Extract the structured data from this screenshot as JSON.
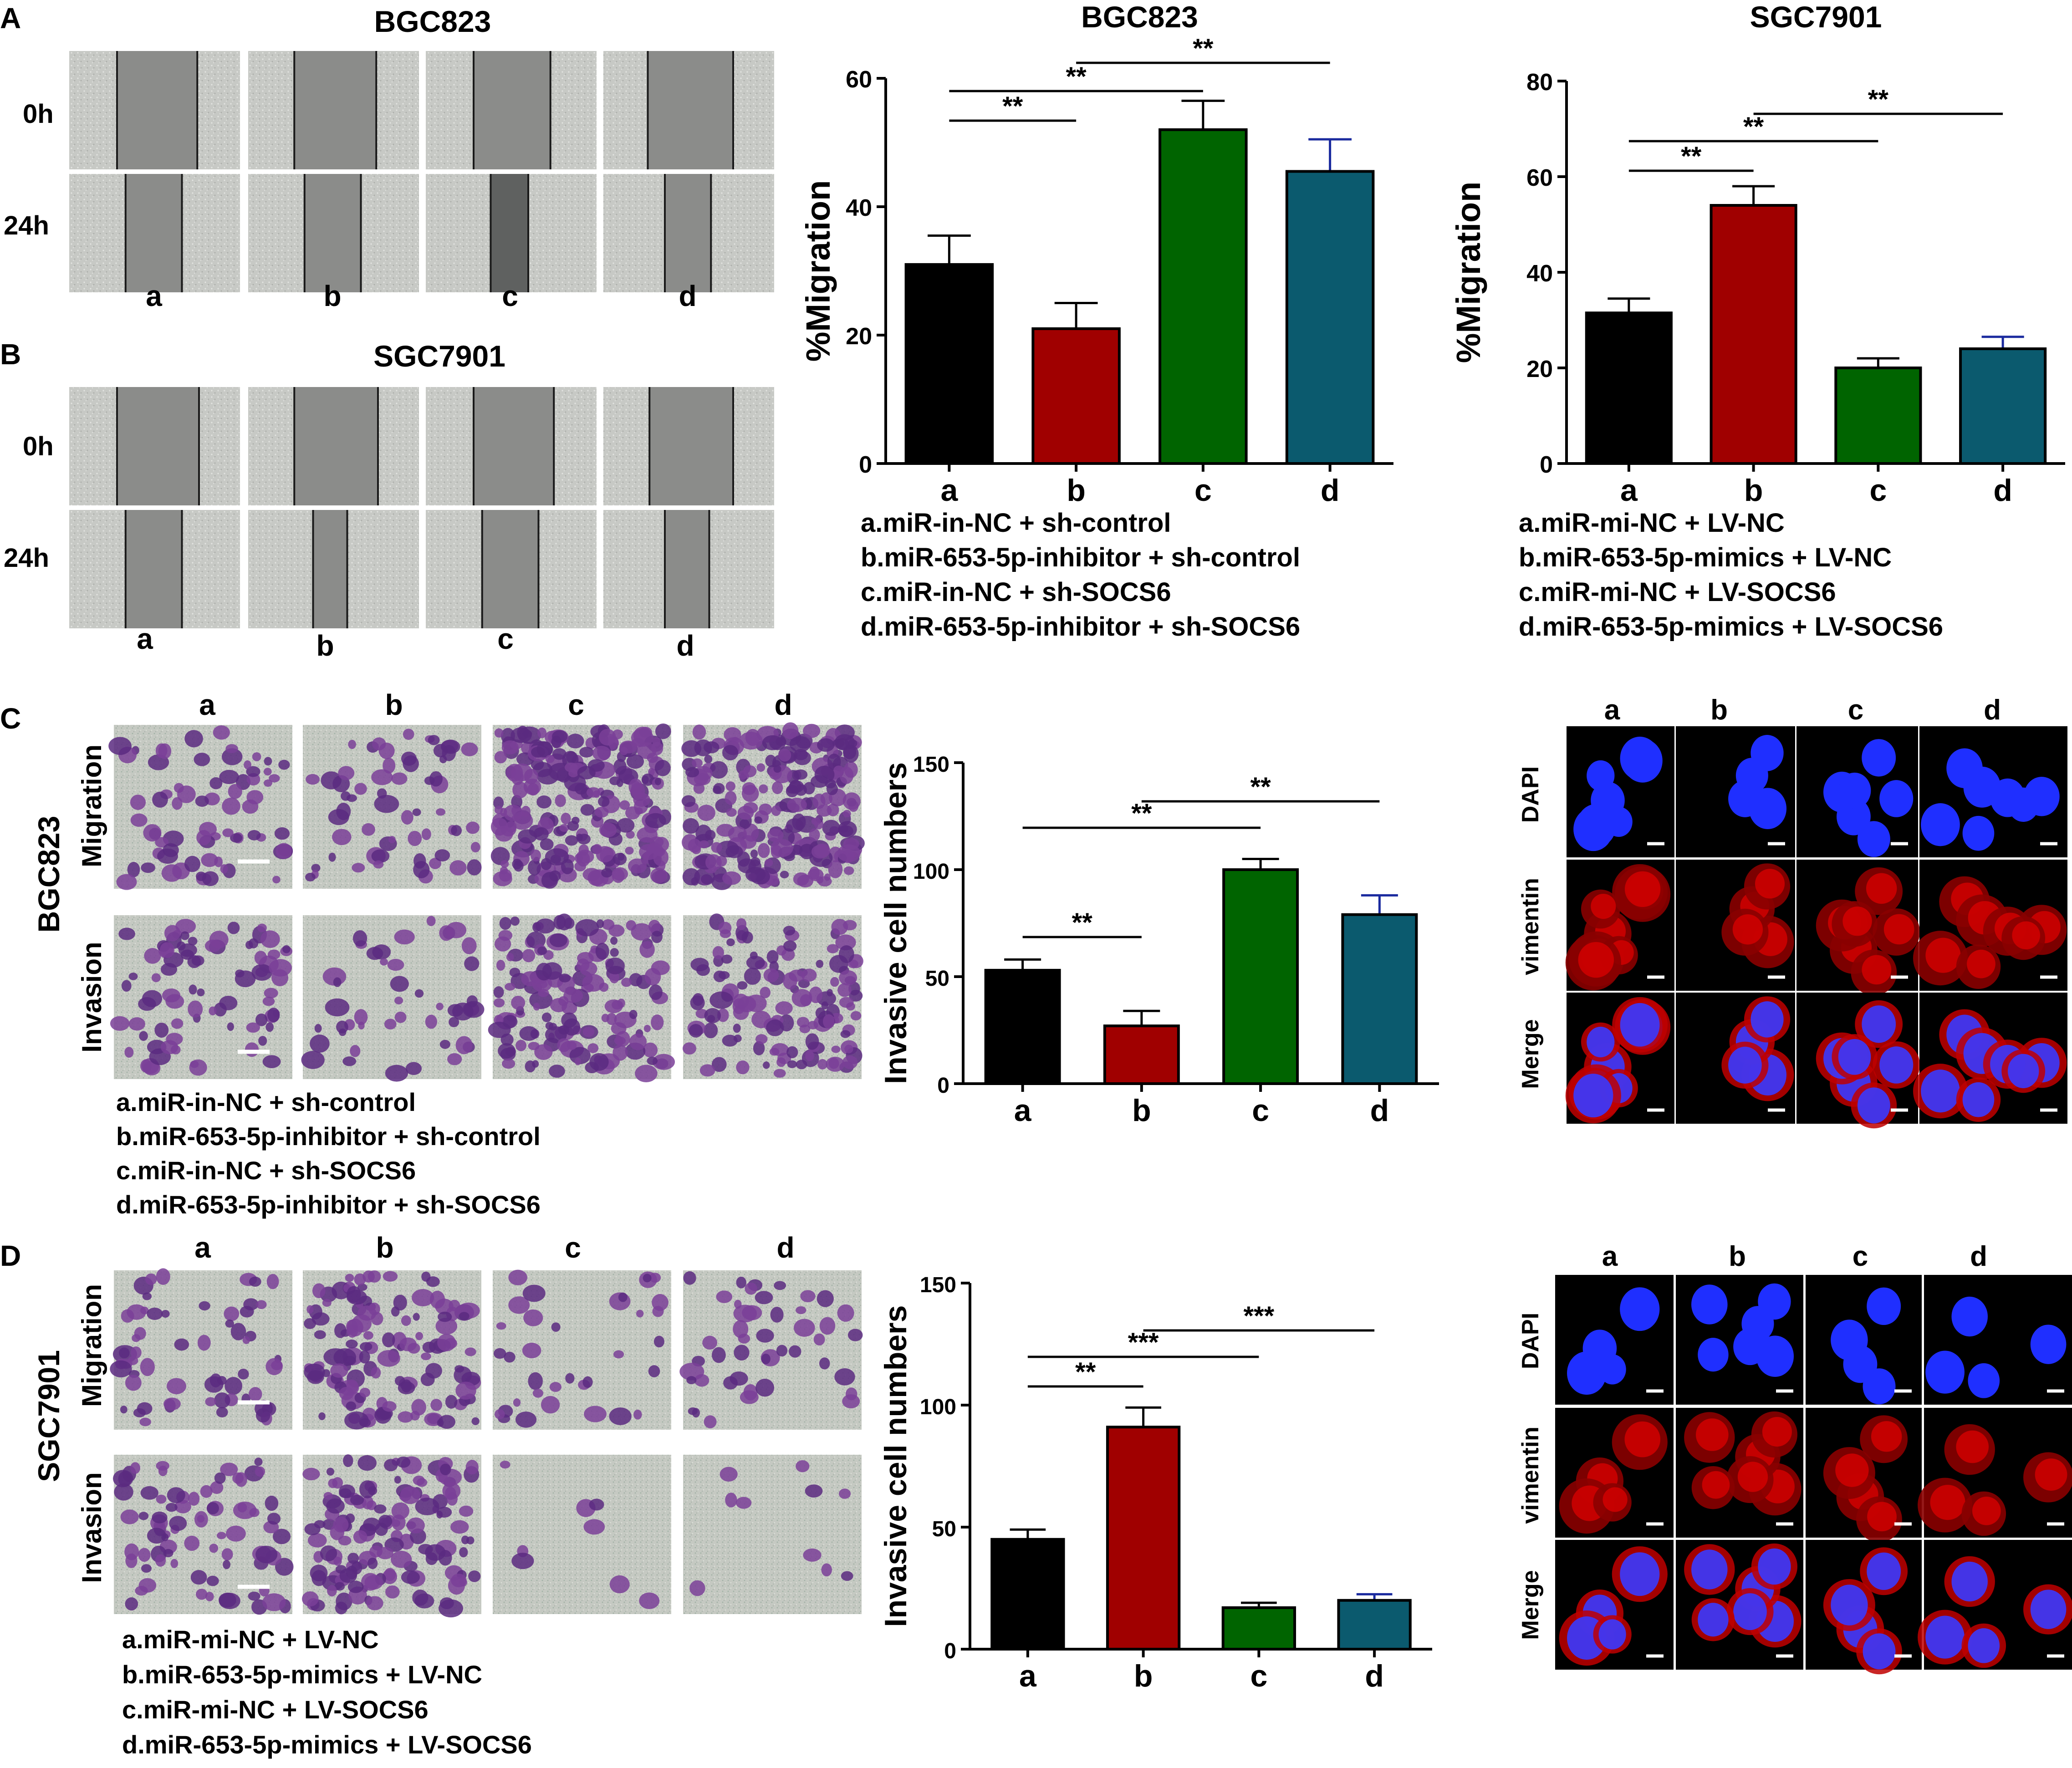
{
  "panels": {
    "A": {
      "label": "A",
      "micro_title": "BGC823",
      "rows": [
        "0h",
        "24h"
      ],
      "cols": [
        "a",
        "b",
        "c",
        "d"
      ],
      "scratch": {
        "frame_color": "#c9cbc8",
        "gap_color": "#8b8c8a",
        "gap_color_dark": "#5f6160",
        "line_color": "#1a1a1a"
      }
    },
    "B": {
      "label": "B",
      "micro_title": "SGC7901",
      "rows": [
        "0h",
        "24h"
      ],
      "cols": [
        "a",
        "b",
        "c",
        "d"
      ]
    },
    "C": {
      "label": "C",
      "cell_line": "BGC823",
      "rows": [
        "Migration",
        "Invasion"
      ],
      "cols": [
        "a",
        "b",
        "c",
        "d"
      ],
      "legend": [
        "a.miR-in-NC + sh-control",
        "b.miR-653-5p-inhibitor + sh-control",
        "c.miR-in-NC + sh-SOCS6",
        "d.miR-653-5p-inhibitor + sh-SOCS6"
      ],
      "fluor_cols": [
        "a",
        "b",
        "c",
        "d"
      ],
      "fluor_rows": [
        "DAPI",
        "vimentin",
        "Merge"
      ]
    },
    "D": {
      "label": "D",
      "cell_line": "SGC7901",
      "rows": [
        "Migration",
        "Invasion"
      ],
      "cols": [
        "a",
        "b",
        "c",
        "d"
      ],
      "legend": [
        "a.miR-mi-NC + LV-NC",
        "b.miR-653-5p-mimics + LV-NC",
        "c.miR-mi-NC + LV-SOCS6",
        "d.miR-653-5p-mimics + LV-SOCS6"
      ],
      "fluor_cols": [
        "a",
        "b",
        "c",
        "d"
      ],
      "fluor_rows": [
        "DAPI",
        "vimentin",
        "Merge"
      ]
    }
  },
  "colors": {
    "a": "#000000",
    "b": "#a00000",
    "c": "#006400",
    "d": "#0b5a6e",
    "err_a": "#000000",
    "err_b": "#000000",
    "err_c": "#000000",
    "err_d": "#1a2a9e"
  },
  "chart_data": [
    {
      "id": "chart-A",
      "type": "bar",
      "title": "BGC823",
      "ylabel": "%Migration",
      "xlabel": "",
      "categories": [
        "a",
        "b",
        "c",
        "d"
      ],
      "values": [
        31,
        21,
        52,
        45.5
      ],
      "errors": [
        4.5,
        4,
        4.5,
        5
      ],
      "ylim": [
        0,
        60
      ],
      "yticks": [
        0,
        20,
        40,
        60
      ],
      "significance": [
        {
          "from": 0,
          "to": 1,
          "label": "**"
        },
        {
          "from": 0,
          "to": 2,
          "label": "**"
        },
        {
          "from": 1,
          "to": 3,
          "label": "**"
        }
      ],
      "legend": [
        "a.miR-in-NC + sh-control",
        "b.miR-653-5p-inhibitor + sh-control",
        "c.miR-in-NC + sh-SOCS6",
        "d.miR-653-5p-inhibitor + sh-SOCS6"
      ]
    },
    {
      "id": "chart-B",
      "type": "bar",
      "title": "SGC7901",
      "ylabel": "%Migration",
      "xlabel": "",
      "categories": [
        "a",
        "b",
        "c",
        "d"
      ],
      "values": [
        31.5,
        54,
        20,
        24
      ],
      "errors": [
        3,
        4,
        2,
        2.5
      ],
      "ylim": [
        0,
        80
      ],
      "yticks": [
        0,
        20,
        40,
        60,
        80
      ],
      "significance": [
        {
          "from": 0,
          "to": 1,
          "label": "**"
        },
        {
          "from": 0,
          "to": 2,
          "label": "**"
        },
        {
          "from": 1,
          "to": 3,
          "label": "**"
        }
      ],
      "legend": [
        "a.miR-mi-NC + LV-NC",
        "b.miR-653-5p-mimics + LV-NC",
        "c.miR-mi-NC + LV-SOCS6",
        "d.miR-653-5p-mimics + LV-SOCS6"
      ]
    },
    {
      "id": "chart-C",
      "type": "bar",
      "title": "",
      "ylabel": "Invasive cell numbers",
      "xlabel": "",
      "categories": [
        "a",
        "b",
        "c",
        "d"
      ],
      "values": [
        53,
        27,
        100,
        79
      ],
      "errors": [
        5,
        7,
        5,
        9
      ],
      "ylim": [
        0,
        150
      ],
      "yticks": [
        0,
        50,
        100,
        150
      ],
      "significance": [
        {
          "from": 0,
          "to": 1,
          "label": "**"
        },
        {
          "from": 0,
          "to": 2,
          "label": "**"
        },
        {
          "from": 1,
          "to": 3,
          "label": "**"
        }
      ]
    },
    {
      "id": "chart-D",
      "type": "bar",
      "title": "",
      "ylabel": "Invasive cell numbers",
      "xlabel": "",
      "categories": [
        "a",
        "b",
        "c",
        "d"
      ],
      "values": [
        45,
        91,
        17,
        20
      ],
      "errors": [
        4,
        8,
        2,
        2.5
      ],
      "ylim": [
        0,
        150
      ],
      "yticks": [
        0,
        50,
        100,
        150
      ],
      "significance": [
        {
          "from": 0,
          "to": 1,
          "label": "**"
        },
        {
          "from": 0,
          "to": 2,
          "label": "***"
        },
        {
          "from": 1,
          "to": 3,
          "label": "***"
        }
      ]
    }
  ]
}
